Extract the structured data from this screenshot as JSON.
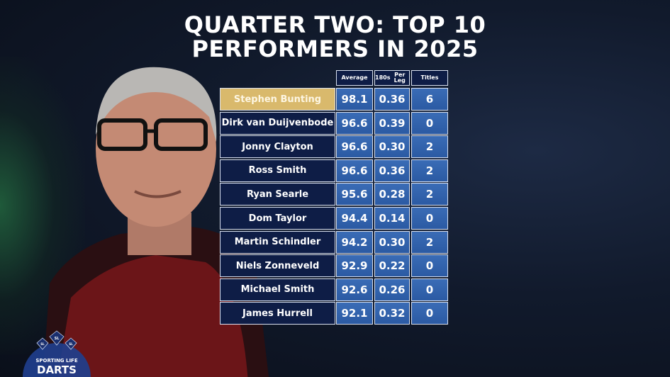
{
  "title": [
    "QUARTER TWO: TOP 10",
    "PERFORMERS IN 2025"
  ],
  "table": {
    "columns": [
      "Average",
      "180s Per Leg",
      "Titles"
    ],
    "column_lines": [
      [
        "Average"
      ],
      [
        "180s",
        "Per Leg"
      ],
      [
        "Titles"
      ]
    ],
    "highlight_color": "#d9b96c",
    "rows": [
      {
        "name": "Stephen Bunting",
        "average": "98.1",
        "per_leg": "0.36",
        "titles": "6"
      },
      {
        "name": "Dirk van Duijvenbode",
        "average": "96.6",
        "per_leg": "0.39",
        "titles": "0"
      },
      {
        "name": "Jonny Clayton",
        "average": "96.6",
        "per_leg": "0.30",
        "titles": "2"
      },
      {
        "name": "Ross Smith",
        "average": "96.6",
        "per_leg": "0.36",
        "titles": "2"
      },
      {
        "name": "Ryan Searle",
        "average": "95.6",
        "per_leg": "0.28",
        "titles": "2"
      },
      {
        "name": "Dom Taylor",
        "average": "94.4",
        "per_leg": "0.14",
        "titles": "0"
      },
      {
        "name": "Martin Schindler",
        "average": "94.2",
        "per_leg": "0.30",
        "titles": "2"
      },
      {
        "name": "Niels Zonneveld",
        "average": "92.9",
        "per_leg": "0.22",
        "titles": "0"
      },
      {
        "name": "Michael Smith",
        "average": "92.6",
        "per_leg": "0.26",
        "titles": "0"
      },
      {
        "name": "James Hurrell",
        "average": "92.1",
        "per_leg": "0.32",
        "titles": "0"
      }
    ]
  },
  "logo": {
    "badges": [
      "SL",
      "SL",
      "SL"
    ],
    "line1": "SPORTING LIFE",
    "line2": "DARTS"
  }
}
